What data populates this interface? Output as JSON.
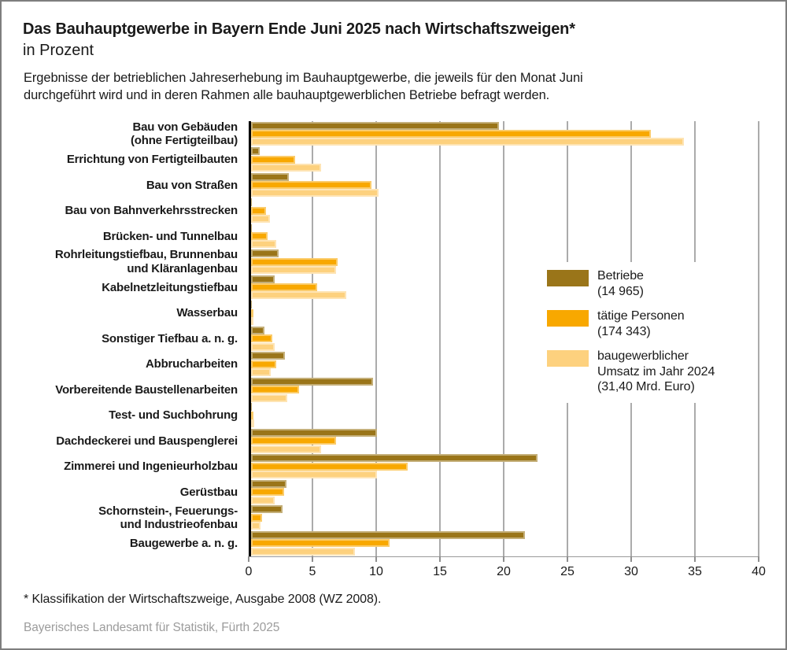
{
  "header": {
    "title": "Das Bauhauptgewerbe in Bayern Ende Juni 2025 nach Wirtschaftszweigen*",
    "subtitle": "in Prozent",
    "description_lines": [
      "Ergebnisse der betrieblichen Jahreserhebung im Bauhauptgewerbe, die jeweils für den Monat Juni",
      "durchgeführt wird und in deren Rahmen alle bauhauptgewerblichen Betriebe befragt werden."
    ]
  },
  "chart_data": {
    "type": "bar",
    "orientation": "horizontal",
    "value_unit": "Prozent",
    "xlim": [
      0,
      40
    ],
    "xticks": [
      0,
      5,
      10,
      15,
      20,
      25,
      30,
      35,
      40
    ],
    "grid": true,
    "legend_position": "middle-right",
    "categories": [
      {
        "name": "Bau von Gebäuden (ohne Fertigteilbau)",
        "lines": [
          "Bau von Gebäuden",
          "(ohne Fertigteilbau)"
        ]
      },
      {
        "name": "Errichtung von Fertigteilbauten",
        "lines": [
          "Errichtung von Fertigteilbauten"
        ]
      },
      {
        "name": "Bau von Straßen",
        "lines": [
          "Bau von Straßen"
        ]
      },
      {
        "name": "Bau von Bahnverkehrsstrecken",
        "lines": [
          "Bau von Bahnverkehrsstrecken"
        ]
      },
      {
        "name": "Brücken- und Tunnelbau",
        "lines": [
          "Brücken- und Tunnelbau"
        ]
      },
      {
        "name": "Rohrleitungstiefbau, Brunnenbau und Kläranlagenbau",
        "lines": [
          "Rohrleitungstiefbau, Brunnenbau",
          "und Kläranlagenbau"
        ]
      },
      {
        "name": "Kabelnetzleitungstiefbau",
        "lines": [
          "Kabelnetzleitungstiefbau"
        ]
      },
      {
        "name": "Wasserbau",
        "lines": [
          "Wasserbau"
        ]
      },
      {
        "name": "Sonstiger Tiefbau a. n. g.",
        "lines": [
          "Sonstiger Tiefbau a. n. g."
        ]
      },
      {
        "name": "Abbrucharbeiten",
        "lines": [
          "Abbrucharbeiten"
        ]
      },
      {
        "name": "Vorbereitende Baustellenarbeiten",
        "lines": [
          "Vorbereitende Baustellenarbeiten"
        ]
      },
      {
        "name": "Test- und Suchbohrung",
        "lines": [
          "Test- und Suchbohrung"
        ]
      },
      {
        "name": "Dachdeckerei und Bauspenglerei",
        "lines": [
          "Dachdeckerei und Bauspenglerei"
        ]
      },
      {
        "name": "Zimmerei und Ingenieurholzbau",
        "lines": [
          "Zimmerei und Ingenieurholzbau"
        ]
      },
      {
        "name": "Gerüstbau",
        "lines": [
          "Gerüstbau"
        ]
      },
      {
        "name": "Schornstein-, Feuerungs- und Industrieofenbau",
        "lines": [
          "Schornstein-, Feuerungs-",
          "und Industrieofenbau"
        ]
      },
      {
        "name": "Baugewerbe a. n. g.",
        "lines": [
          "Baugewerbe a. n. g."
        ]
      }
    ],
    "series": [
      {
        "name": "Betriebe",
        "annotation": "(14 965)",
        "label_lines": [
          "Betriebe",
          "(14 965)"
        ],
        "color": "#9A7519",
        "values": [
          19.5,
          0.7,
          3.0,
          0.1,
          0.1,
          2.2,
          1.9,
          0.1,
          1.1,
          2.7,
          9.6,
          0.1,
          9.9,
          22.5,
          2.8,
          2.5,
          21.5
        ]
      },
      {
        "name": "tätige Personen",
        "annotation": "(174 343)",
        "label_lines": [
          "tätige Personen",
          "(174 343)"
        ],
        "color": "#F8A800",
        "values": [
          31.4,
          3.5,
          9.5,
          1.2,
          1.3,
          6.8,
          5.2,
          0.2,
          1.7,
          2.0,
          3.8,
          0.2,
          6.7,
          12.3,
          2.6,
          0.9,
          10.9
        ]
      },
      {
        "name": "baugewerblicher Umsatz im Jahr 2024",
        "annotation": "(31,40 Mrd. Euro)",
        "label_lines": [
          "baugewerblicher",
          "Umsatz im Jahr 2024",
          "(31,40 Mrd. Euro)"
        ],
        "color": "#FDD17E",
        "values": [
          34.0,
          5.5,
          10.0,
          1.5,
          2.0,
          6.7,
          7.5,
          0.2,
          1.9,
          1.6,
          2.9,
          0.3,
          5.5,
          9.9,
          1.9,
          0.8,
          8.2
        ]
      }
    ],
    "colors": {
      "gridline": "#ABABAB",
      "zero_axis": "#000000",
      "x_axis_line": "#999999",
      "text": "#1A1A1A",
      "source_text": "#9C9C9C",
      "frame_border": "#7E7E7E"
    }
  },
  "footer": {
    "footnote": "* Klassifikation der Wirtschaftszweige, Ausgabe 2008 (WZ 2008).",
    "source": "Bayerisches Landesamt für Statistik, Fürth 2025"
  }
}
